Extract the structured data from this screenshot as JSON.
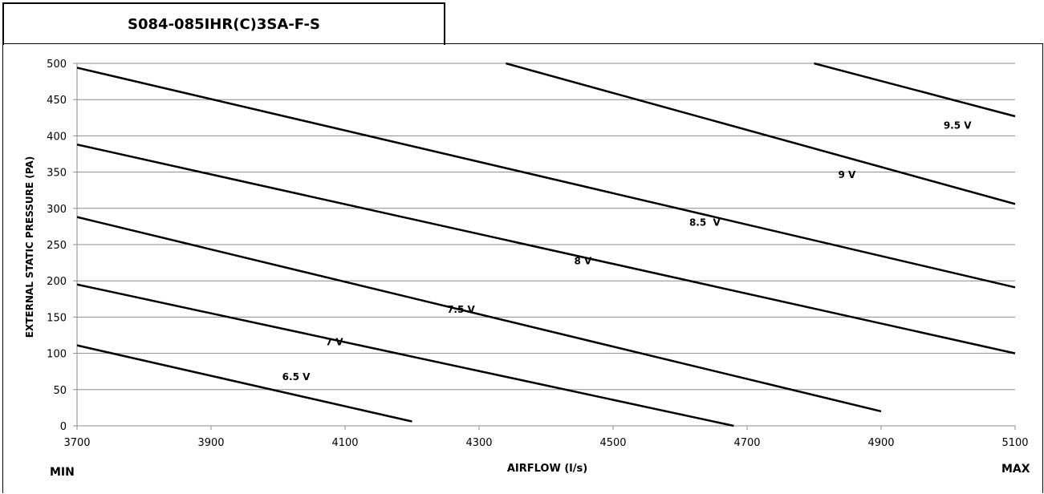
{
  "chart_data": {
    "type": "line",
    "title": "S084-085IHR(C)3SA-F-S",
    "xlabel": "AIRFLOW (l/s)",
    "ylabel": "EXTERNAL STATIC PRESSURE (PA)",
    "xlim": [
      3700,
      5100
    ],
    "ylim": [
      0,
      500
    ],
    "x_ticks": [
      3700,
      3900,
      4100,
      4300,
      4500,
      4700,
      4900,
      5100
    ],
    "y_ticks": [
      0,
      50,
      100,
      150,
      200,
      250,
      300,
      350,
      400,
      450,
      500
    ],
    "x_min_label": "MIN",
    "x_max_label": "MAX",
    "grid": "horizontal",
    "series": [
      {
        "name": "6.5 V",
        "label_at": [
          4027,
          63
        ],
        "points": [
          [
            3700,
            111
          ],
          [
            4200,
            6
          ]
        ]
      },
      {
        "name": "7 V",
        "label_at": [
          4084,
          111
        ],
        "points": [
          [
            3700,
            195
          ],
          [
            4680,
            0
          ]
        ]
      },
      {
        "name": "7.5 V",
        "label_at": [
          4273,
          156
        ],
        "points": [
          [
            3700,
            288
          ],
          [
            4900,
            20
          ]
        ]
      },
      {
        "name": "8 V",
        "label_at": [
          4455,
          223
        ],
        "points": [
          [
            3700,
            388
          ],
          [
            5100,
            100
          ]
        ]
      },
      {
        "name": "8.5  V",
        "label_at": [
          4637,
          276
        ],
        "points": [
          [
            3700,
            494
          ],
          [
            5100,
            191
          ]
        ]
      },
      {
        "name": "9 V",
        "label_at": [
          4849,
          342
        ],
        "points": [
          [
            4340,
            500
          ],
          [
            5100,
            306
          ]
        ]
      },
      {
        "name": "9.5 V",
        "label_at": [
          5014,
          410
        ],
        "points": [
          [
            4800,
            500
          ],
          [
            5100,
            427
          ]
        ]
      }
    ]
  }
}
